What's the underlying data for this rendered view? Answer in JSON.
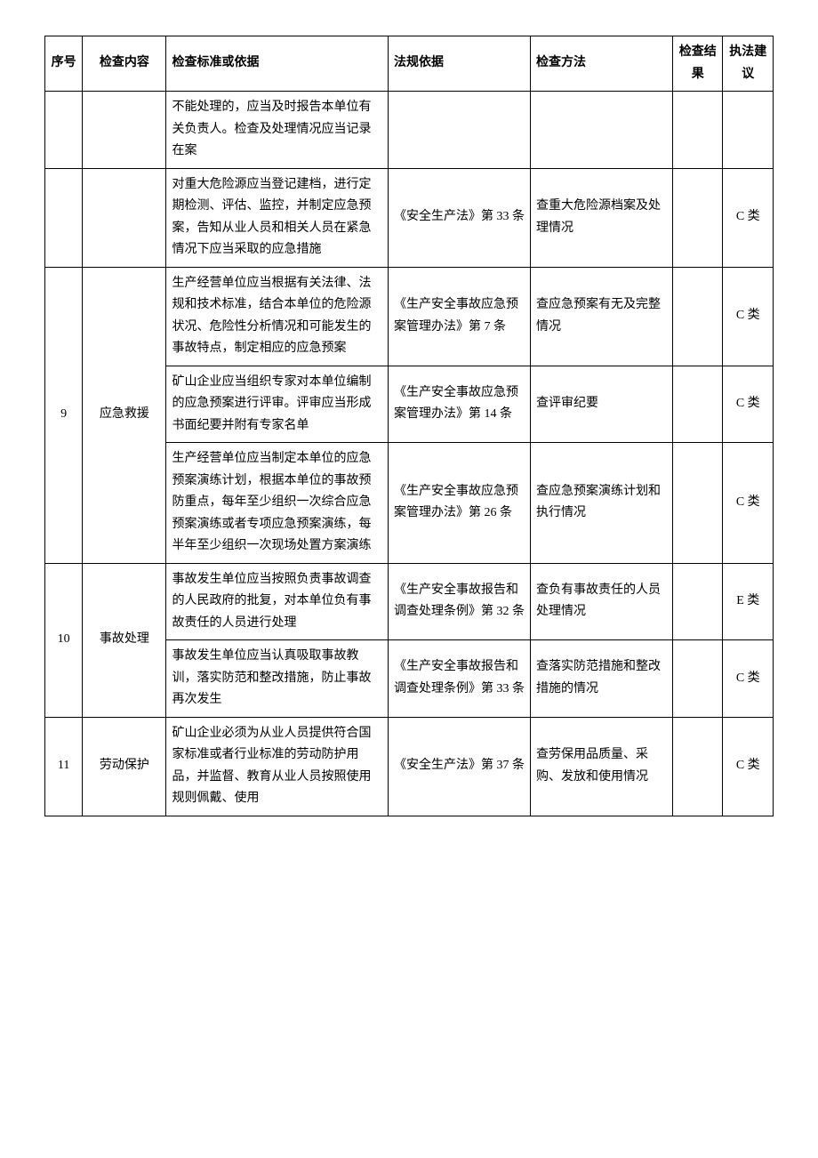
{
  "table": {
    "columns": [
      {
        "key": "seq",
        "label": "序号",
        "class": "col-seq"
      },
      {
        "key": "content",
        "label": "检查内容",
        "class": "col-content"
      },
      {
        "key": "std",
        "label": "检查标准或依据",
        "class": "col-std"
      },
      {
        "key": "basis",
        "label": "法规依据",
        "class": "col-basis"
      },
      {
        "key": "method",
        "label": "检查方法",
        "class": "col-method"
      },
      {
        "key": "result",
        "label": "检查结果",
        "class": "col-result"
      },
      {
        "key": "advice",
        "label": "执法建议",
        "class": "col-advice"
      }
    ],
    "rows": [
      {
        "seq": "",
        "content": "",
        "std": "不能处理的，应当及时报告本单位有关负责人。检查及处理情况应当记录在案",
        "basis": "",
        "method": "",
        "result": "",
        "advice": ""
      },
      {
        "seq": "",
        "content": "",
        "std": "对重大危险源应当登记建档，进行定期检测、评估、监控，并制定应急预案，告知从业人员和相关人员在紧急情况下应当采取的应急措施",
        "basis": "《安全生产法》第 33 条",
        "method": "查重大危险源档案及处理情况",
        "result": "",
        "advice": "C 类"
      },
      {
        "seq": "9",
        "content": "应急救援",
        "std": "生产经营单位应当根据有关法律、法规和技术标准，结合本单位的危险源状况、危险性分析情况和可能发生的事故特点，制定相应的应急预案",
        "basis": "《生产安全事故应急预案管理办法》第 7 条",
        "method": "查应急预案有无及完整情况",
        "result": "",
        "advice": "C 类"
      },
      {
        "seq": "",
        "content": "",
        "std": "矿山企业应当组织专家对本单位编制的应急预案进行评审。评审应当形成书面纪要并附有专家名单",
        "basis": "《生产安全事故应急预案管理办法》第 14 条",
        "method": "查评审纪要",
        "result": "",
        "advice": "C 类"
      },
      {
        "seq": "",
        "content": "",
        "std": "生产经营单位应当制定本单位的应急预案演练计划，根据本单位的事故预防重点，每年至少组织一次综合应急预案演练或者专项应急预案演练，每半年至少组织一次现场处置方案演练",
        "basis": "《生产安全事故应急预案管理办法》第 26 条",
        "method": "查应急预案演练计划和执行情况",
        "result": "",
        "advice": "C 类"
      },
      {
        "seq": "10",
        "content": "事故处理",
        "std": "事故发生单位应当按照负责事故调查的人民政府的批复，对本单位负有事故责任的人员进行处理",
        "basis": "《生产安全事故报告和调查处理条例》第 32 条",
        "method": "查负有事故责任的人员处理情况",
        "result": "",
        "advice": "E 类"
      },
      {
        "seq": "",
        "content": "",
        "std": "事故发生单位应当认真吸取事故教训，落实防范和整改措施，防止事故再次发生",
        "basis": "《生产安全事故报告和调查处理条例》第 33 条",
        "method": "查落实防范措施和整改措施的情况",
        "result": "",
        "advice": "C 类"
      },
      {
        "seq": "11",
        "content": "劳动保护",
        "std": "矿山企业必须为从业人员提供符合国家标准或者行业标准的劳动防护用品，并监督、教育从业人员按照使用规则佩戴、使用",
        "basis": "《安全生产法》第 37 条",
        "method": "查劳保用品质量、采购、发放和使用情况",
        "result": "",
        "advice": "C 类"
      }
    ],
    "merges": [
      {
        "row": 2,
        "col": "seq",
        "rowspan": 3
      },
      {
        "row": 2,
        "col": "content",
        "rowspan": 3
      },
      {
        "row": 5,
        "col": "seq",
        "rowspan": 2
      },
      {
        "row": 5,
        "col": "content",
        "rowspan": 2
      }
    ],
    "border_color": "#000000",
    "background_color": "#ffffff",
    "text_color": "#000000",
    "header_fontweight": "bold",
    "body_fontsize": 14,
    "line_height": 1.75
  }
}
